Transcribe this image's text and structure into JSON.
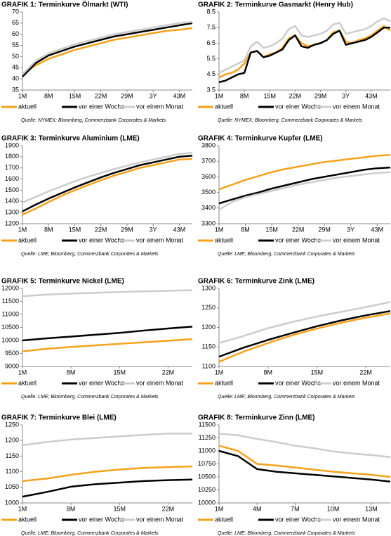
{
  "chart_data": [
    {
      "type": "line",
      "title": "GRAFIK 1: Terminkurve Ölmarkt (WTI)",
      "source": "Quelle: NYMEX; Bloomberg, Commerzbank Corporates & Markets",
      "categories": [
        "1M",
        null,
        "8M",
        null,
        "15M",
        null,
        "22M",
        null,
        "29M",
        null,
        "3Y",
        null,
        "43M",
        null
      ],
      "ylim": [
        35,
        70
      ],
      "yticks": [
        35,
        40,
        45,
        50,
        55,
        60,
        65,
        70
      ],
      "series": [
        {
          "name": "aktuell",
          "color": "#f7a11a",
          "values": [
            42,
            46,
            49,
            51,
            53,
            54.5,
            56,
            57.5,
            58.5,
            59.5,
            60.5,
            61.5,
            62,
            62.8
          ]
        },
        {
          "name": "vor einer Woche",
          "color": "#000000",
          "values": [
            41,
            47,
            50.5,
            52.5,
            54.5,
            56,
            57.5,
            59,
            60,
            61,
            62,
            63,
            64,
            65
          ]
        },
        {
          "name": "vor einem Monat",
          "color": "#cccccc",
          "values": [
            42,
            48,
            51.5,
            53.5,
            55.5,
            57,
            58.5,
            60,
            61,
            62,
            63,
            64,
            65,
            65.5
          ]
        }
      ]
    },
    {
      "type": "line",
      "title": "GRAFIK 2: Terminkurve Gasmarkt (Henry Hub)",
      "source": "Quelle: NYMEX; Bloomberg, Commerzbank Corporates & Markets",
      "categories": [
        "1M",
        null,
        null,
        null,
        "8M",
        null,
        null,
        null,
        "15M",
        null,
        null,
        null,
        "22M",
        null,
        null,
        null,
        "29M",
        null,
        null,
        null,
        "3Y",
        null,
        null,
        null,
        "43M",
        null,
        null,
        null
      ],
      "ylim": [
        3.5,
        8.5
      ],
      "yticks": [
        3.5,
        4.5,
        5.5,
        6.5,
        7.5,
        8.5
      ],
      "series": [
        {
          "name": "aktuell",
          "color": "#f7a11a",
          "values": [
            4.3,
            4.5,
            4.6,
            4.8,
            5.2,
            5.9,
            6.0,
            5.6,
            5.8,
            5.9,
            6.2,
            6.8,
            7.0,
            6.5,
            6.3,
            6.4,
            6.5,
            6.7,
            7.2,
            7.3,
            6.6,
            6.5,
            6.7,
            6.8,
            7.0,
            7.3,
            7.6,
            7.3
          ]
        },
        {
          "name": "vor einer Woche",
          "color": "#000000",
          "values": [
            4.0,
            4.1,
            4.3,
            4.5,
            4.6,
            5.9,
            6.0,
            5.6,
            5.7,
            5.9,
            6.1,
            6.7,
            7.0,
            6.3,
            6.2,
            6.4,
            6.5,
            6.7,
            7.1,
            7.3,
            6.4,
            6.5,
            6.6,
            6.7,
            6.9,
            7.2,
            7.5,
            7.5
          ]
        },
        {
          "name": "vor einem Monat",
          "color": "#cccccc",
          "values": [
            4.6,
            4.8,
            5.0,
            5.2,
            5.4,
            6.3,
            6.6,
            6.2,
            6.3,
            6.5,
            6.8,
            7.4,
            7.6,
            7.0,
            6.9,
            7.0,
            7.1,
            7.3,
            7.7,
            7.8,
            7.1,
            7.2,
            7.3,
            7.4,
            7.6,
            7.9,
            8.1,
            7.9
          ]
        }
      ]
    },
    {
      "type": "line",
      "title": "GRAFIK 3: Terminkurve Aluminium (LME)",
      "source": "Quelle: LME; Bloomberg, Commerzbank Corporates & Markets",
      "categories": [
        "1M",
        null,
        "8M",
        null,
        "15M",
        null,
        "22M",
        null,
        "29M",
        null,
        "3Y",
        null,
        "43M",
        null
      ],
      "ylim": [
        1200,
        1900
      ],
      "yticks": [
        1200,
        1300,
        1400,
        1500,
        1600,
        1700,
        1800,
        1900
      ],
      "series": [
        {
          "name": "aktuell",
          "color": "#f7a11a",
          "values": [
            1280,
            1335,
            1395,
            1450,
            1500,
            1545,
            1590,
            1630,
            1665,
            1700,
            1725,
            1750,
            1775,
            1780
          ]
        },
        {
          "name": "vor einer Woche",
          "color": "#000000",
          "values": [
            1310,
            1370,
            1425,
            1475,
            1525,
            1570,
            1615,
            1655,
            1690,
            1725,
            1750,
            1775,
            1800,
            1810
          ]
        },
        {
          "name": "vor einem Monat",
          "color": "#cccccc",
          "values": [
            1390,
            1440,
            1490,
            1535,
            1580,
            1620,
            1655,
            1690,
            1720,
            1750,
            1775,
            1800,
            1825,
            1835
          ]
        }
      ]
    },
    {
      "type": "line",
      "title": "GRAFIK 4: Terminkurve Kupfer (LME)",
      "source": "Quelle: LME; Bloomberg, Commerzbank Corporates & Markets",
      "categories": [
        "1M",
        null,
        "8M",
        null,
        "15M",
        null,
        "22M",
        null,
        "29M",
        null,
        "3Y",
        null,
        "43M",
        null
      ],
      "ylim": [
        3300,
        3800
      ],
      "yticks": [
        3300,
        3400,
        3500,
        3600,
        3700,
        3800
      ],
      "series": [
        {
          "name": "aktuell",
          "color": "#f7a11a",
          "values": [
            3520,
            3550,
            3580,
            3605,
            3630,
            3650,
            3665,
            3680,
            3695,
            3705,
            3715,
            3725,
            3735,
            3740
          ]
        },
        {
          "name": "vor einer Woche",
          "color": "#000000",
          "values": [
            3430,
            3455,
            3480,
            3500,
            3525,
            3545,
            3565,
            3585,
            3600,
            3615,
            3630,
            3645,
            3655,
            3660
          ]
        },
        {
          "name": "vor einem Monat",
          "color": "#cccccc",
          "values": [
            3390,
            3440,
            3470,
            3490,
            3510,
            3530,
            3550,
            3565,
            3580,
            3595,
            3605,
            3615,
            3625,
            3630
          ]
        }
      ]
    },
    {
      "type": "line",
      "title": "GRAFIK 5: Terminkurve Nickel (LME)",
      "source": "Quelle: LME; Bloomberg, Commerzbank Corporates & Markets",
      "categories": [
        "1M",
        null,
        "8M",
        null,
        "15M",
        null,
        "22M",
        null
      ],
      "ylim": [
        9000,
        12000
      ],
      "yticks": [
        9000,
        9500,
        10000,
        10500,
        11000,
        11500,
        12000
      ],
      "series": [
        {
          "name": "aktuell",
          "color": "#f7a11a",
          "values": [
            9580,
            9680,
            9750,
            9810,
            9870,
            9930,
            9990,
            10050
          ]
        },
        {
          "name": "vor einer Woche",
          "color": "#000000",
          "values": [
            10000,
            10080,
            10150,
            10220,
            10290,
            10380,
            10460,
            10530
          ]
        },
        {
          "name": "vor einem Monat",
          "color": "#cccccc",
          "values": [
            11700,
            11760,
            11800,
            11830,
            11860,
            11890,
            11910,
            11930
          ]
        }
      ]
    },
    {
      "type": "line",
      "title": "GRAFIK 6: Terminkurve Zink (LME)",
      "source": "Quelle: LME; Bloomberg, Commerzbank Corporates & Markets",
      "categories": [
        "1M",
        null,
        "8M",
        null,
        "15M",
        null,
        "22M",
        null
      ],
      "ylim": [
        1100,
        1300
      ],
      "yticks": [
        1100,
        1150,
        1200,
        1250,
        1300
      ],
      "series": [
        {
          "name": "aktuell",
          "color": "#f7a11a",
          "values": [
            1112,
            1138,
            1160,
            1180,
            1197,
            1212,
            1225,
            1236
          ]
        },
        {
          "name": "vor einer Woche",
          "color": "#000000",
          "values": [
            1125,
            1148,
            1168,
            1186,
            1203,
            1218,
            1231,
            1242
          ]
        },
        {
          "name": "vor einem Monat",
          "color": "#cccccc",
          "values": [
            1160,
            1178,
            1198,
            1214,
            1228,
            1240,
            1252,
            1265
          ]
        }
      ]
    },
    {
      "type": "line",
      "title": "GRAFIK 7: Terminkurve Blei (LME)",
      "source": "Quelle: LME; Bloomberg, Commerzbank Corporates & Markets",
      "categories": [
        "1M",
        null,
        "8M",
        null,
        "15M",
        null,
        "22M",
        null
      ],
      "ylim": [
        1000,
        1250
      ],
      "yticks": [
        1000,
        1050,
        1100,
        1150,
        1200,
        1250
      ],
      "series": [
        {
          "name": "aktuell",
          "color": "#f7a11a",
          "values": [
            1070,
            1078,
            1090,
            1100,
            1107,
            1112,
            1115,
            1117
          ]
        },
        {
          "name": "vor einer Woche",
          "color": "#000000",
          "values": [
            1020,
            1035,
            1052,
            1060,
            1065,
            1070,
            1073,
            1075
          ]
        },
        {
          "name": "vor einem Monat",
          "color": "#cccccc",
          "values": [
            1185,
            1195,
            1203,
            1208,
            1213,
            1218,
            1222,
            1222
          ]
        }
      ]
    },
    {
      "type": "line",
      "title": "GRAFIK 8: Terminkurve Zinn (LME)",
      "source": "Quelle: LME; Bloomberg, Commerzbank Corporates & Markets",
      "categories": [
        "1M",
        null,
        "4M",
        null,
        "7M",
        null,
        "10M",
        null,
        "13M",
        null
      ],
      "ylim": [
        10000,
        11500
      ],
      "yticks": [
        10000,
        10250,
        10500,
        10750,
        11000,
        11250,
        11500
      ],
      "series": [
        {
          "name": "aktuell",
          "color": "#f7a11a",
          "values": [
            11100,
            11000,
            10750,
            10720,
            10680,
            10640,
            10600,
            10570,
            10540,
            10500
          ]
        },
        {
          "name": "vor einer Woche",
          "color": "#000000",
          "values": [
            11000,
            10900,
            10650,
            10600,
            10570,
            10540,
            10510,
            10480,
            10450,
            10410
          ]
        },
        {
          "name": "vor einem Monat",
          "color": "#cccccc",
          "values": [
            11330,
            11300,
            11230,
            11170,
            11100,
            11050,
            10990,
            10950,
            10920,
            10880
          ]
        }
      ]
    }
  ]
}
